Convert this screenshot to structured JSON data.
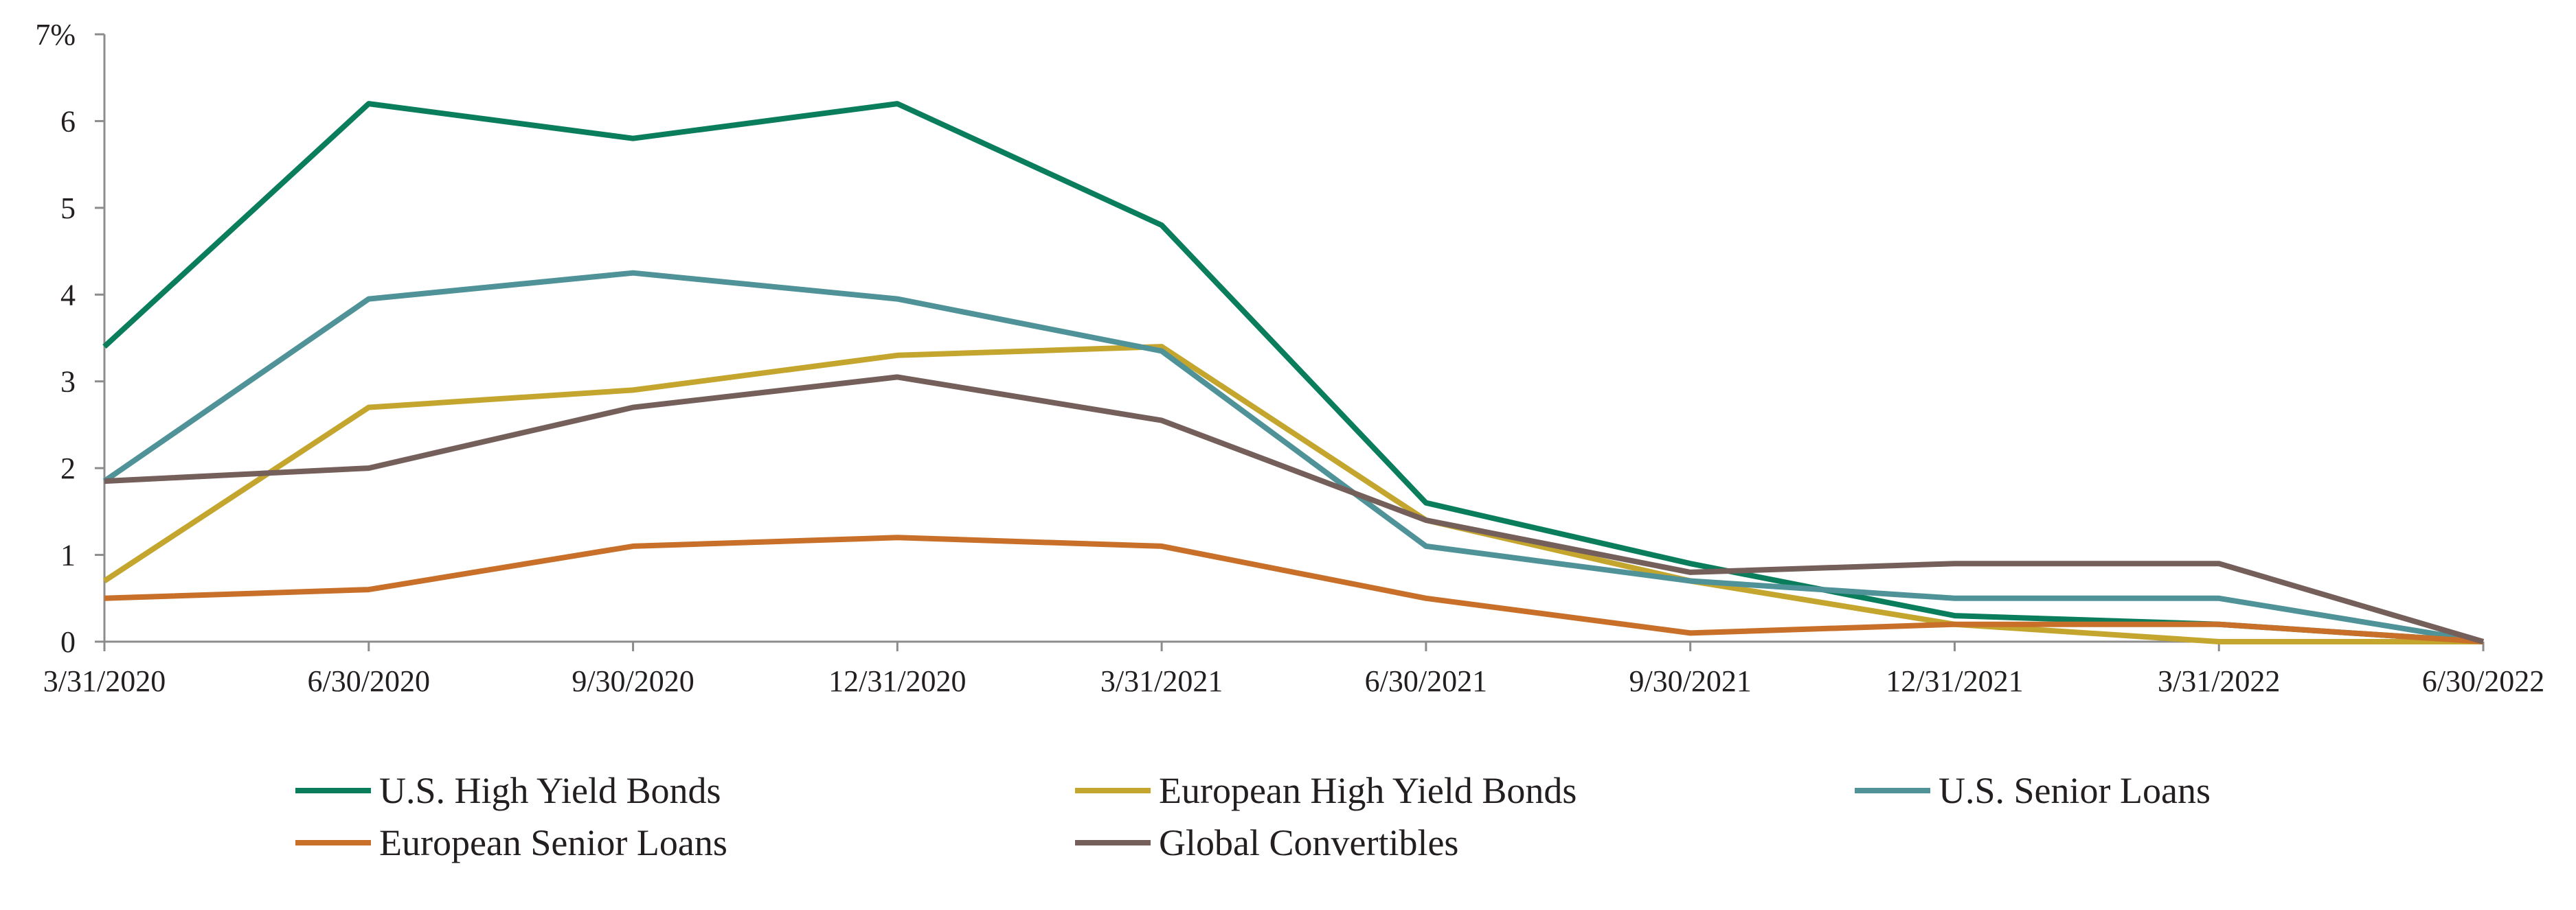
{
  "chart_data": {
    "type": "line",
    "title": "",
    "xlabel": "",
    "ylabel": "",
    "y_unit_suffix": "%",
    "ylim": [
      0,
      7
    ],
    "yticks": [
      0,
      1,
      2,
      3,
      4,
      5,
      6,
      7
    ],
    "ytick_labels": [
      "0",
      "1",
      "2",
      "3",
      "4",
      "5",
      "6",
      "7%"
    ],
    "categories": [
      "3/31/2020",
      "6/30/2020",
      "9/30/2020",
      "12/31/2020",
      "3/31/2021",
      "6/30/2021",
      "9/30/2021",
      "12/31/2021",
      "3/31/2022",
      "6/30/2022"
    ],
    "grid": false,
    "legend_position": "bottom",
    "series": [
      {
        "name": "U.S. High Yield Bonds",
        "color": "#0a7d5c",
        "values": [
          3.4,
          6.2,
          5.8,
          6.2,
          4.8,
          1.6,
          0.9,
          0.3,
          0.2,
          0.0
        ]
      },
      {
        "name": "European High Yield Bonds",
        "color": "#c4a62e",
        "values": [
          0.7,
          2.7,
          2.9,
          3.3,
          3.4,
          1.4,
          0.7,
          0.2,
          0.0,
          0.0
        ]
      },
      {
        "name": "U.S. Senior Loans",
        "color": "#4f9399",
        "values": [
          1.85,
          3.95,
          4.25,
          3.95,
          3.35,
          1.1,
          0.7,
          0.5,
          0.5,
          0.0
        ]
      },
      {
        "name": "European Senior Loans",
        "color": "#c8702a",
        "values": [
          0.5,
          0.6,
          1.1,
          1.2,
          1.1,
          0.5,
          0.1,
          0.2,
          0.2,
          0.0
        ]
      },
      {
        "name": "Global Convertibles",
        "color": "#755f5a",
        "values": [
          1.85,
          2.0,
          2.7,
          3.05,
          2.55,
          1.4,
          0.8,
          0.9,
          0.9,
          0.0
        ]
      }
    ]
  }
}
